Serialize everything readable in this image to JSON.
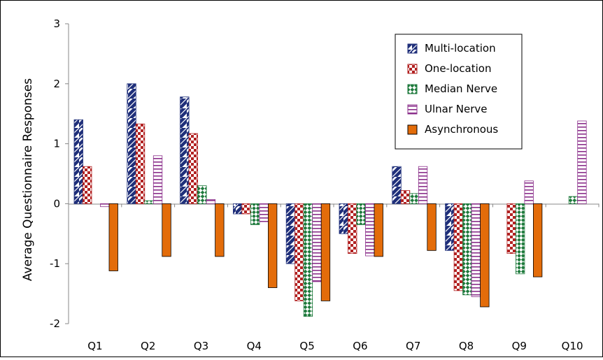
{
  "chart_data": {
    "type": "bar",
    "title": "",
    "xlabel": "",
    "ylabel": "Average Questionnaire Responses",
    "ylim": [
      -2,
      3
    ],
    "yticks": [
      "3",
      "2",
      "1",
      "0",
      "-1",
      "-2"
    ],
    "categories": [
      "Q1",
      "Q2",
      "Q3",
      "Q4",
      "Q5",
      "Q6",
      "Q7",
      "Q8",
      "Q9",
      "Q10"
    ],
    "legend_position": "top-right",
    "grid": false,
    "series": [
      {
        "name": "Multi-location",
        "pattern": "diagonal-stripes",
        "color": "#1f2f7a",
        "values": [
          1.4,
          2.0,
          1.78,
          -0.17,
          -1.0,
          -0.5,
          0.62,
          -0.78,
          0.0,
          0.0
        ]
      },
      {
        "name": "One-location",
        "pattern": "checkerboard",
        "color": "#b22222",
        "values": [
          0.62,
          1.33,
          1.17,
          -0.17,
          -1.62,
          -0.83,
          0.22,
          -1.45,
          -0.83,
          0.0
        ]
      },
      {
        "name": "Median Nerve",
        "pattern": "diamond-checker",
        "color": "#1e7a3c",
        "values": [
          0.0,
          0.05,
          0.3,
          -0.35,
          -1.88,
          -0.35,
          0.17,
          -1.52,
          -1.17,
          0.12
        ]
      },
      {
        "name": "Ulnar Nerve",
        "pattern": "horizontal-stripes",
        "color": "#8b2f8b",
        "values": [
          -0.05,
          0.8,
          0.07,
          -0.3,
          -1.3,
          -0.87,
          0.62,
          -1.55,
          0.38,
          1.38
        ]
      },
      {
        "name": "Asynchronous",
        "pattern": "solid",
        "color": "#e36c0a",
        "values": [
          -1.12,
          -0.88,
          -0.88,
          -1.4,
          -1.62,
          -0.88,
          -0.78,
          -1.72,
          -1.22,
          0.0
        ]
      }
    ]
  }
}
